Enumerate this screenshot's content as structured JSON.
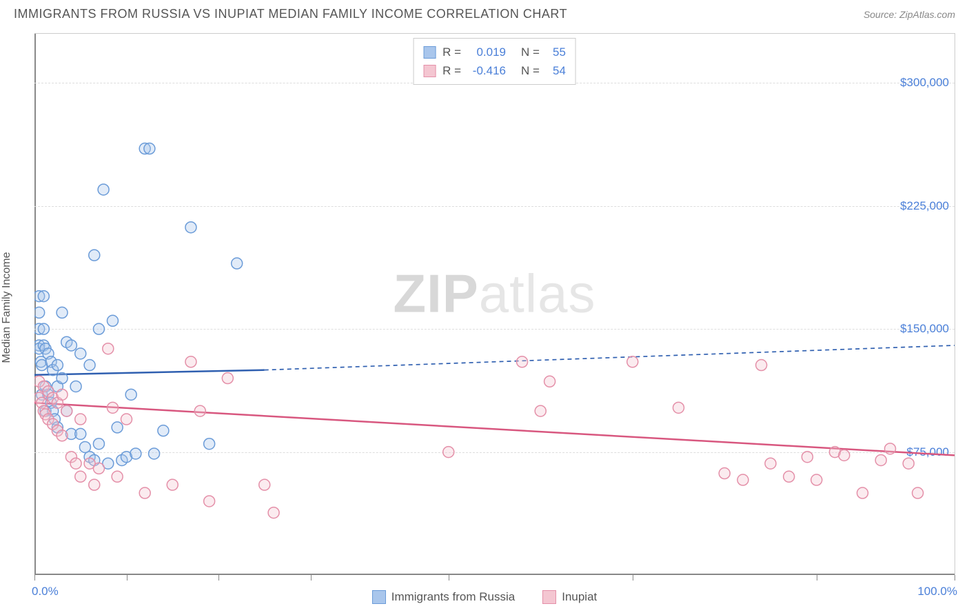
{
  "title": "IMMIGRANTS FROM RUSSIA VS INUPIAT MEDIAN FAMILY INCOME CORRELATION CHART",
  "source_label": "Source: ZipAtlas.com",
  "ylabel": "Median Family Income",
  "watermark_bold": "ZIP",
  "watermark_light": "atlas",
  "chart": {
    "type": "scatter-with-regression",
    "xlim": [
      0,
      100
    ],
    "ylim": [
      0,
      330000
    ],
    "x_min_label": "0.0%",
    "x_max_label": "100.0%",
    "y_ticks": [
      75000,
      150000,
      225000,
      300000
    ],
    "y_tick_labels": [
      "$75,000",
      "$150,000",
      "$225,000",
      "$300,000"
    ],
    "x_ticks_pct": [
      0,
      10,
      20,
      30,
      45,
      65,
      85,
      100
    ],
    "background_color": "#ffffff",
    "grid_color": "#dddddd",
    "axis_color": "#888888",
    "ylabel_color": "#555555",
    "tick_label_color": "#4a7fd8",
    "marker_radius": 8,
    "marker_stroke_width": 1.5,
    "marker_fill_opacity": 0.35,
    "regression_stroke_width": 2.5,
    "regression_dash": "6,5",
    "series": [
      {
        "key": "russia",
        "label": "Immigrants from Russia",
        "color_fill": "#a9c6ec",
        "color_stroke": "#6a9bd8",
        "line_color": "#2f5fb0",
        "R": "0.019",
        "N": "55",
        "regression": {
          "x1": 0,
          "y1": 122000,
          "x2_solid": 25,
          "y2_solid": 125000,
          "x2": 100,
          "y2": 140000
        },
        "points": [
          [
            0.5,
            170000
          ],
          [
            0.5,
            160000
          ],
          [
            0.5,
            150000
          ],
          [
            0.5,
            140000
          ],
          [
            0.5,
            138000
          ],
          [
            0.7,
            130000
          ],
          [
            0.8,
            128000
          ],
          [
            0.8,
            110000
          ],
          [
            1,
            170000
          ],
          [
            1,
            150000
          ],
          [
            1,
            140000
          ],
          [
            1.2,
            138000
          ],
          [
            1.2,
            115000
          ],
          [
            1.2,
            100000
          ],
          [
            1.5,
            135000
          ],
          [
            1.5,
            110000
          ],
          [
            1.8,
            130000
          ],
          [
            1.8,
            105000
          ],
          [
            2,
            125000
          ],
          [
            2,
            100000
          ],
          [
            2.2,
            95000
          ],
          [
            2.5,
            128000
          ],
          [
            2.5,
            115000
          ],
          [
            2.5,
            90000
          ],
          [
            3,
            160000
          ],
          [
            3,
            120000
          ],
          [
            3.5,
            142000
          ],
          [
            3.5,
            100000
          ],
          [
            4,
            140000
          ],
          [
            4,
            86000
          ],
          [
            4.5,
            115000
          ],
          [
            5,
            135000
          ],
          [
            5,
            86000
          ],
          [
            5.5,
            78000
          ],
          [
            6,
            128000
          ],
          [
            6,
            72000
          ],
          [
            6.5,
            195000
          ],
          [
            6.5,
            70000
          ],
          [
            7,
            150000
          ],
          [
            7,
            80000
          ],
          [
            7.5,
            235000
          ],
          [
            8,
            68000
          ],
          [
            8.5,
            155000
          ],
          [
            9,
            90000
          ],
          [
            9.5,
            70000
          ],
          [
            10,
            72000
          ],
          [
            10.5,
            110000
          ],
          [
            11,
            74000
          ],
          [
            12,
            260000
          ],
          [
            12.5,
            260000
          ],
          [
            13,
            74000
          ],
          [
            14,
            88000
          ],
          [
            17,
            212000
          ],
          [
            19,
            80000
          ],
          [
            22,
            190000
          ]
        ]
      },
      {
        "key": "inupiat",
        "label": "Inupiat",
        "color_fill": "#f4c6d1",
        "color_stroke": "#e48fa8",
        "line_color": "#d8577f",
        "R": "-0.416",
        "N": "54",
        "regression": {
          "x1": 0,
          "y1": 105000,
          "x2_solid": 100,
          "y2_solid": 73000,
          "x2": 100,
          "y2": 73000
        },
        "points": [
          [
            0.5,
            118000
          ],
          [
            0.5,
            108000
          ],
          [
            0.8,
            105000
          ],
          [
            1,
            115000
          ],
          [
            1,
            100000
          ],
          [
            1.2,
            98000
          ],
          [
            1.5,
            112000
          ],
          [
            1.5,
            95000
          ],
          [
            2,
            108000
          ],
          [
            2,
            92000
          ],
          [
            2.5,
            105000
          ],
          [
            2.5,
            88000
          ],
          [
            3,
            110000
          ],
          [
            3,
            85000
          ],
          [
            3.5,
            100000
          ],
          [
            4,
            72000
          ],
          [
            4.5,
            68000
          ],
          [
            5,
            95000
          ],
          [
            5,
            60000
          ],
          [
            6,
            68000
          ],
          [
            6.5,
            55000
          ],
          [
            7,
            65000
          ],
          [
            8,
            138000
          ],
          [
            8.5,
            102000
          ],
          [
            9,
            60000
          ],
          [
            10,
            95000
          ],
          [
            12,
            50000
          ],
          [
            15,
            55000
          ],
          [
            17,
            130000
          ],
          [
            18,
            100000
          ],
          [
            19,
            45000
          ],
          [
            21,
            120000
          ],
          [
            25,
            55000
          ],
          [
            26,
            38000
          ],
          [
            45,
            75000
          ],
          [
            53,
            130000
          ],
          [
            55,
            100000
          ],
          [
            56,
            118000
          ],
          [
            65,
            130000
          ],
          [
            70,
            102000
          ],
          [
            75,
            62000
          ],
          [
            77,
            58000
          ],
          [
            79,
            128000
          ],
          [
            80,
            68000
          ],
          [
            82,
            60000
          ],
          [
            84,
            72000
          ],
          [
            85,
            58000
          ],
          [
            87,
            75000
          ],
          [
            88,
            73000
          ],
          [
            90,
            50000
          ],
          [
            92,
            70000
          ],
          [
            93,
            77000
          ],
          [
            95,
            68000
          ],
          [
            96,
            50000
          ]
        ]
      }
    ]
  },
  "top_legend": {
    "r_label": "R =",
    "n_label": "N ="
  }
}
